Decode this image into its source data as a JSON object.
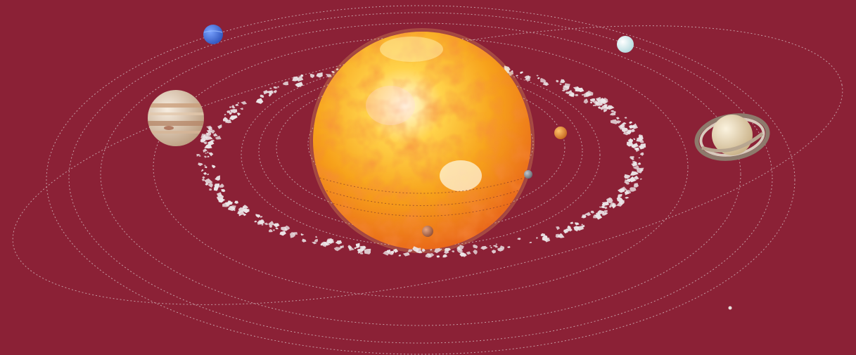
{
  "scene": {
    "background_color": "#8b2136",
    "orbit_line_color": "#d9c4c8"
  },
  "sun": {
    "colors": [
      "#fffbe0",
      "#ffd24a",
      "#f7a21b",
      "#e8621a"
    ]
  },
  "planets": [
    {
      "name": "mercury",
      "color": "#8a8f99"
    },
    {
      "name": "venus",
      "color": "#e98a2a"
    },
    {
      "name": "earth-like",
      "color": "#c07a55"
    },
    {
      "name": "jupiter",
      "color": "#e7d3bb"
    },
    {
      "name": "saturn",
      "color": "#efe1c4"
    },
    {
      "name": "uranus",
      "color": "#d8f0f3"
    },
    {
      "name": "neptune",
      "color": "#3d6fe0"
    },
    {
      "name": "pluto",
      "color": "#e6e0dc"
    }
  ],
  "asteroid_belt": {
    "color": "#ece7e9"
  }
}
